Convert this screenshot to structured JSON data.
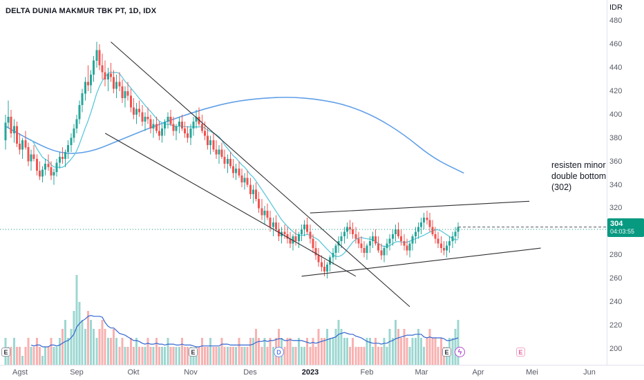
{
  "header": {
    "symbol_info": "DELTA DUNIA MAKMUR TBK PT, 1D, IDX"
  },
  "axis": {
    "currency_label": "IDR"
  },
  "price_badge": {
    "price": "304",
    "countdown": "04:03:55"
  },
  "annotation": {
    "text": "resisten minor\ndouble bottom\n(302)"
  },
  "chart_data": {
    "type": "candlestick",
    "title": "DELTA DUNIA MAKMUR TBK PT, 1D, IDX",
    "currency": "IDR",
    "last_price": 304,
    "countdown": "04:03:55",
    "ylim": [
      200,
      480
    ],
    "price_ticks": [
      200,
      220,
      240,
      260,
      280,
      300,
      320,
      340,
      360,
      380,
      400,
      420,
      440,
      460,
      480
    ],
    "time_labels": [
      {
        "label": "Agst",
        "index": 5
      },
      {
        "label": "Sep",
        "index": 25
      },
      {
        "label": "Okt",
        "index": 45
      },
      {
        "label": "Nov",
        "index": 65
      },
      {
        "label": "Des",
        "index": 86
      },
      {
        "label": "2023",
        "index": 107,
        "year": true
      },
      {
        "label": "Feb",
        "index": 127
      },
      {
        "label": "Mar",
        "index": 146
      },
      {
        "label": "Apr",
        "index": 166
      },
      {
        "label": "Mei",
        "index": 185
      },
      {
        "label": "Jun",
        "index": 205
      }
    ],
    "candles": [
      [
        378,
        400,
        370,
        393
      ],
      [
        393,
        412,
        388,
        398
      ],
      [
        398,
        404,
        380,
        384
      ],
      [
        384,
        396,
        376,
        390
      ],
      [
        390,
        394,
        372,
        375
      ],
      [
        375,
        384,
        366,
        370
      ],
      [
        370,
        380,
        362,
        378
      ],
      [
        378,
        386,
        370,
        372
      ],
      [
        372,
        376,
        356,
        360
      ],
      [
        360,
        370,
        352,
        366
      ],
      [
        366,
        374,
        360,
        362
      ],
      [
        362,
        366,
        348,
        352
      ],
      [
        352,
        360,
        344,
        347
      ],
      [
        347,
        356,
        342,
        353
      ],
      [
        353,
        362,
        348,
        358
      ],
      [
        358,
        366,
        352,
        355
      ],
      [
        355,
        360,
        344,
        348
      ],
      [
        348,
        354,
        340,
        351
      ],
      [
        351,
        362,
        347,
        359
      ],
      [
        359,
        368,
        354,
        364
      ],
      [
        364,
        372,
        358,
        362
      ],
      [
        362,
        370,
        355,
        368
      ],
      [
        368,
        378,
        362,
        374
      ],
      [
        374,
        384,
        368,
        380
      ],
      [
        380,
        392,
        376,
        388
      ],
      [
        388,
        400,
        384,
        396
      ],
      [
        396,
        412,
        392,
        408
      ],
      [
        408,
        422,
        402,
        418
      ],
      [
        418,
        432,
        412,
        428
      ],
      [
        428,
        442,
        420,
        425
      ],
      [
        425,
        438,
        418,
        434
      ],
      [
        434,
        450,
        428,
        446
      ],
      [
        446,
        462,
        440,
        455
      ],
      [
        455,
        460,
        438,
        442
      ],
      [
        442,
        452,
        430,
        436
      ],
      [
        436,
        446,
        424,
        430
      ],
      [
        430,
        440,
        420,
        435
      ],
      [
        435,
        444,
        428,
        432
      ],
      [
        432,
        438,
        418,
        422
      ],
      [
        422,
        434,
        414,
        428
      ],
      [
        428,
        436,
        420,
        424
      ],
      [
        424,
        430,
        410,
        414
      ],
      [
        414,
        424,
        406,
        420
      ],
      [
        420,
        428,
        412,
        416
      ],
      [
        416,
        422,
        402,
        406
      ],
      [
        406,
        414,
        396,
        400
      ],
      [
        400,
        410,
        392,
        405
      ],
      [
        405,
        412,
        398,
        402
      ],
      [
        402,
        408,
        390,
        394
      ],
      [
        394,
        402,
        386,
        398
      ],
      [
        398,
        406,
        392,
        396
      ],
      [
        396,
        400,
        384,
        388
      ],
      [
        388,
        396,
        380,
        392
      ],
      [
        392,
        398,
        384,
        386
      ],
      [
        386,
        394,
        378,
        382
      ],
      [
        382,
        392,
        376,
        388
      ],
      [
        388,
        396,
        382,
        394
      ],
      [
        394,
        402,
        388,
        398
      ],
      [
        398,
        404,
        390,
        392
      ],
      [
        392,
        398,
        382,
        386
      ],
      [
        386,
        392,
        378,
        390
      ],
      [
        390,
        398,
        384,
        394
      ],
      [
        394,
        400,
        386,
        388
      ],
      [
        388,
        394,
        380,
        384
      ],
      [
        384,
        390,
        376,
        380
      ],
      [
        380,
        392,
        374,
        388
      ],
      [
        388,
        398,
        382,
        394
      ],
      [
        394,
        404,
        388,
        398
      ],
      [
        398,
        406,
        390,
        392
      ],
      [
        392,
        400,
        384,
        386
      ],
      [
        386,
        394,
        378,
        382
      ],
      [
        382,
        388,
        370,
        374
      ],
      [
        374,
        382,
        366,
        378
      ],
      [
        378,
        384,
        368,
        370
      ],
      [
        370,
        378,
        362,
        366
      ],
      [
        366,
        374,
        358,
        370
      ],
      [
        370,
        376,
        362,
        364
      ],
      [
        364,
        370,
        354,
        358
      ],
      [
        358,
        366,
        350,
        362
      ],
      [
        362,
        368,
        354,
        356
      ],
      [
        356,
        362,
        346,
        350
      ],
      [
        350,
        358,
        344,
        354
      ],
      [
        354,
        360,
        346,
        348
      ],
      [
        348,
        354,
        338,
        342
      ],
      [
        342,
        350,
        336,
        346
      ],
      [
        346,
        352,
        338,
        340
      ],
      [
        340,
        346,
        328,
        332
      ],
      [
        332,
        340,
        324,
        336
      ],
      [
        336,
        342,
        326,
        328
      ],
      [
        328,
        334,
        316,
        320
      ],
      [
        320,
        328,
        310,
        314
      ],
      [
        314,
        322,
        306,
        318
      ],
      [
        318,
        324,
        310,
        312
      ],
      [
        312,
        318,
        300,
        304
      ],
      [
        304,
        312,
        296,
        308
      ],
      [
        308,
        314,
        300,
        302
      ],
      [
        302,
        308,
        292,
        296
      ],
      [
        296,
        304,
        290,
        300
      ],
      [
        300,
        306,
        294,
        298
      ],
      [
        298,
        304,
        290,
        294
      ],
      [
        294,
        300,
        286,
        290
      ],
      [
        290,
        298,
        284,
        296
      ],
      [
        296,
        302,
        288,
        292
      ],
      [
        292,
        300,
        286,
        298
      ],
      [
        298,
        306,
        292,
        302
      ],
      [
        302,
        310,
        296,
        306
      ],
      [
        306,
        312,
        298,
        300
      ],
      [
        300,
        306,
        290,
        294
      ],
      [
        294,
        298,
        282,
        286
      ],
      [
        286,
        292,
        276,
        280
      ],
      [
        280,
        286,
        270,
        274
      ],
      [
        274,
        280,
        266,
        270
      ],
      [
        270,
        276,
        262,
        266
      ],
      [
        266,
        274,
        260,
        272
      ],
      [
        272,
        280,
        266,
        278
      ],
      [
        278,
        286,
        272,
        282
      ],
      [
        282,
        290,
        276,
        288
      ],
      [
        288,
        296,
        282,
        292
      ],
      [
        292,
        300,
        286,
        296
      ],
      [
        296,
        304,
        290,
        300
      ],
      [
        300,
        308,
        294,
        304
      ],
      [
        304,
        310,
        298,
        302
      ],
      [
        302,
        308,
        294,
        298
      ],
      [
        298,
        304,
        290,
        294
      ],
      [
        294,
        300,
        286,
        290
      ],
      [
        290,
        296,
        282,
        286
      ],
      [
        286,
        292,
        278,
        282
      ],
      [
        282,
        290,
        276,
        288
      ],
      [
        288,
        296,
        282,
        292
      ],
      [
        292,
        300,
        286,
        296
      ],
      [
        296,
        302,
        288,
        290
      ],
      [
        290,
        296,
        282,
        284
      ],
      [
        284,
        290,
        276,
        280
      ],
      [
        280,
        288,
        274,
        286
      ],
      [
        286,
        294,
        280,
        290
      ],
      [
        290,
        298,
        284,
        294
      ],
      [
        294,
        302,
        288,
        298
      ],
      [
        298,
        306,
        292,
        302
      ],
      [
        302,
        308,
        294,
        296
      ],
      [
        296,
        302,
        288,
        292
      ],
      [
        292,
        298,
        284,
        288
      ],
      [
        288,
        294,
        280,
        284
      ],
      [
        284,
        292,
        278,
        290
      ],
      [
        290,
        298,
        284,
        296
      ],
      [
        296,
        304,
        290,
        300
      ],
      [
        300,
        308,
        294,
        304
      ],
      [
        304,
        312,
        298,
        308
      ],
      [
        308,
        316,
        302,
        312
      ],
      [
        312,
        318,
        306,
        310
      ],
      [
        310,
        316,
        300,
        304
      ],
      [
        304,
        310,
        296,
        298
      ],
      [
        298,
        304,
        290,
        294
      ],
      [
        294,
        300,
        286,
        290
      ],
      [
        290,
        296,
        282,
        286
      ],
      [
        286,
        292,
        280,
        284
      ],
      [
        284,
        292,
        278,
        288
      ],
      [
        288,
        296,
        282,
        292
      ],
      [
        292,
        300,
        286,
        296
      ],
      [
        296,
        304,
        290,
        300
      ],
      [
        300,
        308,
        294,
        304
      ]
    ],
    "volumes": [
      3,
      2,
      2,
      3,
      2,
      2,
      1,
      2,
      3,
      2,
      2,
      3,
      2,
      1,
      2,
      2,
      3,
      2,
      2,
      3,
      4,
      5,
      3,
      4,
      6,
      10,
      7,
      5,
      4,
      6,
      5,
      4,
      3,
      4,
      5,
      4,
      3,
      3,
      4,
      3,
      2,
      3,
      2,
      2,
      3,
      2,
      3,
      2,
      2,
      2,
      3,
      2,
      2,
      3,
      2,
      2,
      2,
      3,
      2,
      2,
      2,
      2,
      3,
      2,
      2,
      2,
      1,
      2,
      2,
      3,
      2,
      2,
      3,
      2,
      2,
      2,
      3,
      2,
      2,
      2,
      2,
      2,
      3,
      2,
      2,
      2,
      3,
      3,
      4,
      3,
      2,
      3,
      2,
      3,
      2,
      3,
      4,
      3,
      2,
      3,
      3,
      2,
      2,
      3,
      2,
      2,
      3,
      2,
      3,
      2,
      4,
      3,
      3,
      4,
      3,
      3,
      4,
      5,
      4,
      3,
      3,
      2,
      3,
      2,
      2,
      2,
      2,
      3,
      3,
      2,
      3,
      2,
      2,
      3,
      2,
      4,
      3,
      5,
      4,
      3,
      4,
      3,
      2,
      3,
      3,
      4,
      3,
      2,
      3,
      4,
      3,
      3,
      2,
      3,
      2,
      2,
      3,
      3,
      4,
      5
    ],
    "short_ma_period": 10,
    "volume_ma_period": 10,
    "long_ma": {
      "indices": [
        0,
        10,
        20,
        30,
        40,
        50,
        60,
        70,
        80,
        90,
        100,
        110,
        120,
        130,
        140,
        150,
        161
      ],
      "values": [
        390,
        376,
        366,
        368,
        378,
        388,
        397,
        405,
        411,
        414,
        415,
        413,
        408,
        398,
        383,
        363,
        350
      ]
    },
    "trendlines": [
      {
        "name": "descending-channel-top",
        "from": [
          37,
          462
        ],
        "to": [
          142,
          236
        ]
      },
      {
        "name": "descending-channel-bottom",
        "from": [
          35,
          384
        ],
        "to": [
          123,
          262
        ]
      },
      {
        "name": "rising-support",
        "from": [
          104,
          262
        ],
        "to": [
          188,
          286
        ]
      },
      {
        "name": "rising-resistance",
        "from": [
          107,
          316
        ],
        "to": [
          184,
          326
        ]
      }
    ],
    "horizontal_line": {
      "price": 302,
      "style": "dotted"
    },
    "events": [
      {
        "type": "earnings",
        "label": "E",
        "index": 0
      },
      {
        "type": "earnings",
        "label": "E",
        "index": 66
      },
      {
        "type": "dividend",
        "label": "D",
        "index": 96
      },
      {
        "type": "earnings",
        "label": "E",
        "index": 155
      },
      {
        "type": "flash",
        "label": "ϟ",
        "index": 159.5
      },
      {
        "type": "earnings-upcoming",
        "label": "E",
        "index": 181
      }
    ],
    "colors": {
      "up": "#26a69a",
      "down": "#ef5350",
      "vol_up": "rgba(38,166,154,0.45)",
      "vol_down": "rgba(239,83,80,0.45)",
      "long_ma": "#5f9fe8",
      "short_ma": "#5cc8da",
      "vol_ma": "#3264d0",
      "trendline": "#2e2e33",
      "hline": "#089981",
      "price_line": "#50535e",
      "badge_bg": "#089981"
    }
  }
}
